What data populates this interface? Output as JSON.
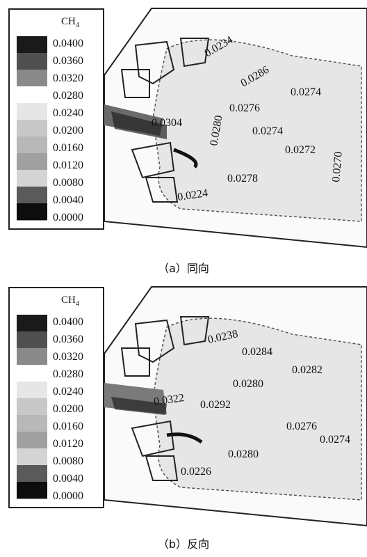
{
  "panels": [
    {
      "id": "a",
      "caption": "（a）同向",
      "legend": {
        "title_main": "CH",
        "title_sub": "4",
        "ticks": [
          "0.0400",
          "0.0360",
          "0.0320",
          "0.0280",
          "0.0240",
          "0.0200",
          "0.0160",
          "0.0120",
          "0.0080",
          "0.0040",
          "0.0000"
        ]
      },
      "labels": [
        "0.0234",
        "0.0286",
        "0.0274",
        "0.0280",
        "0.0276",
        "0.0304",
        "0.0274",
        "0.0272",
        "0.0270",
        "0.0278",
        "0.0224"
      ]
    },
    {
      "id": "b",
      "caption": "（b）反向",
      "legend": {
        "title_main": "CH",
        "title_sub": "4",
        "ticks": [
          "0.0400",
          "0.0360",
          "0.0320",
          "0.0280",
          "0.0240",
          "0.0200",
          "0.0160",
          "0.0120",
          "0.0080",
          "0.0040",
          "0.0000"
        ]
      },
      "labels": [
        "0.0238",
        "0.0284",
        "0.0282",
        "0.0280",
        "0.0322",
        "0.0292",
        "0.0276",
        "0.0274",
        "0.0280",
        "0.0226"
      ]
    }
  ],
  "colors": {
    "swatches": [
      "#1a1a1a",
      "#505050",
      "#8a8a8a",
      "#ffffff",
      "#e6e6e6",
      "#c8c8c8",
      "#b8b8b8",
      "#a0a0a0",
      "#d4d4d4",
      "#5a5a5a",
      "#0d0d0d"
    ],
    "field": "#e9e9e9",
    "outline": "#222222"
  }
}
